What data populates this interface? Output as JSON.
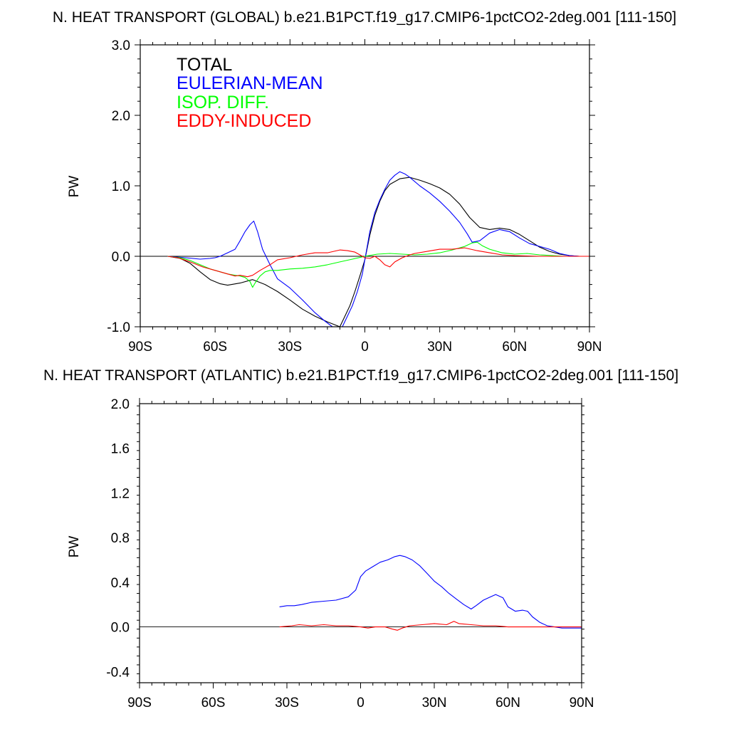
{
  "chart_data": [
    {
      "type": "line",
      "title": "N. HEAT TRANSPORT (GLOBAL) b.e21.B1PCT.f19_g17.CMIP6-1pctCO2-2deg.001 [111-150]",
      "ylabel": "PW",
      "xlabel": "",
      "xlim": [
        -90,
        90
      ],
      "ylim": [
        -1.0,
        3.0
      ],
      "x_ticks": [
        -90,
        -60,
        -30,
        0,
        30,
        60,
        90
      ],
      "x_tick_labels": [
        "90S",
        "60S",
        "30S",
        "0",
        "30N",
        "60N",
        "90N"
      ],
      "y_ticks": [
        -1.0,
        0.0,
        1.0,
        2.0,
        3.0
      ],
      "y_tick_labels": [
        "-1.0",
        "0.0",
        "1.0",
        "2.0",
        "3.0"
      ],
      "zero_line": true,
      "grid": false,
      "legend_position": "top-left",
      "series": [
        {
          "name": "TOTAL",
          "color": "#000000",
          "x": [
            -79,
            -74,
            -70,
            -66,
            -62,
            -58,
            -55,
            -50,
            -45,
            -40,
            -35,
            -30,
            -25,
            -20,
            -15,
            -10,
            -8,
            -6,
            -4,
            -2,
            0,
            2,
            4,
            6,
            8,
            10,
            14,
            18,
            22,
            26,
            30,
            34,
            38,
            42,
            46,
            50,
            54,
            58,
            62,
            66,
            70,
            74,
            78,
            82,
            86,
            90
          ],
          "y": [
            0.0,
            -0.03,
            -0.1,
            -0.22,
            -0.33,
            -0.39,
            -0.41,
            -0.38,
            -0.33,
            -0.4,
            -0.5,
            -0.62,
            -0.75,
            -0.85,
            -0.93,
            -1.0,
            -0.85,
            -0.7,
            -0.5,
            -0.28,
            -0.05,
            0.3,
            0.58,
            0.78,
            0.93,
            1.02,
            1.1,
            1.12,
            1.08,
            1.03,
            0.97,
            0.88,
            0.74,
            0.55,
            0.41,
            0.38,
            0.4,
            0.38,
            0.31,
            0.22,
            0.13,
            0.07,
            0.03,
            0.01,
            0.0,
            0.0
          ]
        },
        {
          "name": "EULERIAN-MEAN",
          "color": "#0000ff",
          "x": [
            -79,
            -72,
            -66,
            -62,
            -60,
            -58,
            -55,
            -52,
            -50,
            -48,
            -46,
            -44.5,
            -43,
            -41,
            -38,
            -35,
            -30,
            -25,
            -20,
            -16,
            -13,
            -11,
            -9,
            -7,
            -5,
            -3,
            -1,
            0,
            2,
            4,
            6,
            8,
            10,
            12,
            14,
            16,
            18,
            22,
            26,
            30,
            34,
            38,
            41,
            43,
            46,
            50,
            54,
            58,
            62,
            66,
            70,
            74,
            78,
            82,
            86,
            90
          ],
          "y": [
            0.0,
            -0.02,
            -0.04,
            -0.03,
            -0.02,
            0.0,
            0.05,
            0.1,
            0.22,
            0.35,
            0.45,
            0.5,
            0.35,
            0.1,
            -0.12,
            -0.32,
            -0.45,
            -0.62,
            -0.8,
            -0.92,
            -1.0,
            -1.02,
            -1.0,
            -0.85,
            -0.7,
            -0.5,
            -0.25,
            -0.05,
            0.35,
            0.62,
            0.8,
            0.95,
            1.08,
            1.15,
            1.2,
            1.17,
            1.12,
            1.0,
            0.9,
            0.78,
            0.64,
            0.48,
            0.32,
            0.2,
            0.22,
            0.33,
            0.38,
            0.35,
            0.26,
            0.18,
            0.14,
            0.1,
            0.04,
            0.01,
            0.0,
            0.0
          ]
        },
        {
          "name": "ISOP. DIFF.",
          "color": "#00ff00",
          "x": [
            -79,
            -74,
            -70,
            -66,
            -62,
            -58,
            -55,
            -52,
            -50,
            -48,
            -46,
            -45,
            -44,
            -42,
            -40,
            -38,
            -35,
            -30,
            -25,
            -20,
            -15,
            -10,
            -5,
            0,
            5,
            10,
            15,
            20,
            25,
            30,
            35,
            40,
            43,
            45,
            47,
            50,
            55,
            60,
            65,
            70,
            75,
            80,
            85,
            90
          ],
          "y": [
            0.0,
            -0.02,
            -0.06,
            -0.12,
            -0.18,
            -0.22,
            -0.25,
            -0.27,
            -0.28,
            -0.3,
            -0.36,
            -0.44,
            -0.38,
            -0.28,
            -0.22,
            -0.2,
            -0.2,
            -0.18,
            -0.17,
            -0.15,
            -0.12,
            -0.08,
            -0.04,
            0.0,
            0.03,
            0.04,
            0.03,
            0.02,
            0.03,
            0.05,
            0.09,
            0.14,
            0.19,
            0.2,
            0.15,
            0.1,
            0.05,
            0.03,
            0.04,
            0.02,
            0.01,
            0.0,
            0.0,
            0.0
          ]
        },
        {
          "name": "EDDY-INDUCED",
          "color": "#ff0000",
          "x": [
            -79,
            -75,
            -70,
            -65,
            -60,
            -55,
            -52,
            -50,
            -47,
            -45,
            -42,
            -38,
            -35,
            -30,
            -25,
            -20,
            -15,
            -10,
            -7,
            -4,
            -2,
            0,
            2,
            4,
            6,
            8,
            10,
            12,
            15,
            18,
            20,
            25,
            30,
            35,
            40,
            45,
            50,
            55,
            60,
            70,
            80,
            90
          ],
          "y": [
            0.0,
            -0.02,
            -0.08,
            -0.15,
            -0.2,
            -0.25,
            -0.28,
            -0.27,
            -0.29,
            -0.27,
            -0.2,
            -0.12,
            -0.05,
            -0.02,
            0.02,
            0.05,
            0.05,
            0.09,
            0.08,
            0.06,
            0.02,
            -0.02,
            -0.03,
            0.0,
            -0.05,
            -0.12,
            -0.15,
            -0.08,
            -0.02,
            0.02,
            0.04,
            0.07,
            0.1,
            0.1,
            0.12,
            0.08,
            0.05,
            0.02,
            0.01,
            0.0,
            0.0,
            0.0
          ]
        }
      ]
    },
    {
      "type": "line",
      "title": "N. HEAT TRANSPORT (ATLANTIC) b.e21.B1PCT.f19_g17.CMIP6-1pctCO2-2deg.001 [111-150]",
      "ylabel": "PW",
      "xlabel": "",
      "xlim": [
        -90,
        90
      ],
      "ylim": [
        -0.5,
        2.0
      ],
      "x_ticks": [
        -90,
        -60,
        -30,
        0,
        30,
        60,
        90
      ],
      "x_tick_labels": [
        "90S",
        "60S",
        "30S",
        "0",
        "30N",
        "60N",
        "90N"
      ],
      "y_ticks": [
        -0.4,
        0.0,
        0.4,
        0.8,
        1.2,
        1.6,
        2.0
      ],
      "y_tick_labels": [
        "-0.4",
        "0.0",
        "0.4",
        "0.8",
        "1.2",
        "1.6",
        "2.0"
      ],
      "zero_line": true,
      "grid": false,
      "series": [
        {
          "name": "EULERIAN-MEAN",
          "color": "#0000ff",
          "x": [
            -33,
            -30,
            -27,
            -24,
            -20,
            -15,
            -10,
            -5,
            -2,
            0,
            2,
            5,
            8,
            11,
            14,
            16,
            18,
            21,
            24,
            27,
            30,
            33,
            36,
            39,
            42,
            45,
            47,
            50,
            53,
            55,
            58,
            60,
            63,
            66,
            68,
            70,
            73,
            76,
            79,
            82,
            86,
            90
          ],
          "y": [
            0.18,
            0.19,
            0.19,
            0.2,
            0.22,
            0.23,
            0.24,
            0.27,
            0.33,
            0.45,
            0.5,
            0.54,
            0.58,
            0.6,
            0.63,
            0.64,
            0.63,
            0.6,
            0.55,
            0.48,
            0.41,
            0.36,
            0.3,
            0.25,
            0.2,
            0.16,
            0.19,
            0.24,
            0.27,
            0.29,
            0.26,
            0.18,
            0.14,
            0.15,
            0.14,
            0.09,
            0.04,
            0.01,
            0.0,
            -0.01,
            -0.01,
            -0.01
          ]
        },
        {
          "name": "EDDY-INDUCED",
          "color": "#ff0000",
          "x": [
            -33,
            -28,
            -25,
            -20,
            -15,
            -10,
            -5,
            0,
            3,
            6,
            10,
            13,
            15,
            17,
            20,
            25,
            30,
            35,
            38,
            40,
            45,
            50,
            55,
            60,
            70,
            80,
            90
          ],
          "y": [
            0.0,
            0.01,
            0.02,
            0.01,
            0.02,
            0.01,
            0.01,
            0.0,
            -0.01,
            0.0,
            0.0,
            -0.02,
            -0.03,
            -0.01,
            0.01,
            0.02,
            0.03,
            0.02,
            0.05,
            0.03,
            0.02,
            0.01,
            0.01,
            0.0,
            0.0,
            0.0,
            0.0
          ]
        }
      ]
    }
  ]
}
